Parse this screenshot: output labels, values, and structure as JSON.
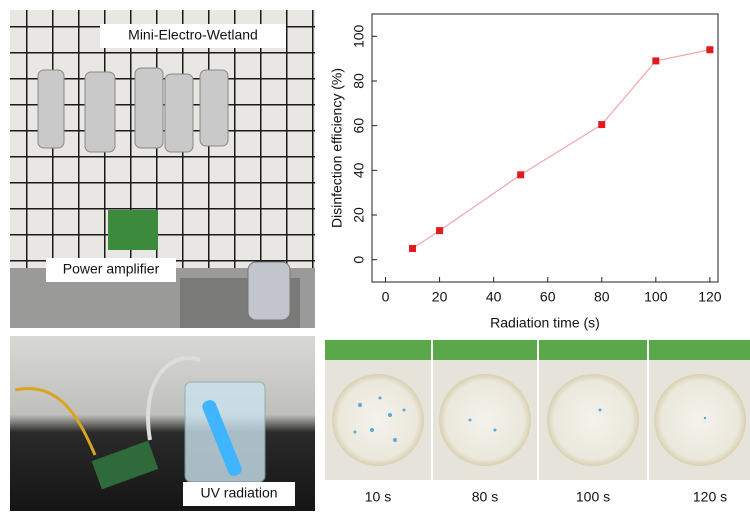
{
  "chart_data": {
    "type": "line",
    "x_label": "Radiation time (s)",
    "y_label": "Disinfection efficiency (%)",
    "x": [
      10,
      20,
      50,
      80,
      100,
      120
    ],
    "series": [
      {
        "color": "#e31a1c",
        "line_color": "#f2a7a7",
        "values": [
          5,
          13,
          38,
          60.5,
          89,
          94
        ]
      }
    ],
    "xlim": [
      -5,
      123
    ],
    "xticks": [
      0,
      20,
      40,
      60,
      80,
      100,
      120
    ],
    "ylim": [
      -10,
      110
    ],
    "yticks": [
      0,
      20,
      40,
      60,
      80,
      100
    ],
    "grid": false
  },
  "photos": {
    "wetland_label": "Mini-Electro-Wetland",
    "amplifier_label": "Power amplifier",
    "uv_label": "UV radiation",
    "plates": [
      "10 s",
      "80 s",
      "100 s",
      "120 s"
    ]
  }
}
